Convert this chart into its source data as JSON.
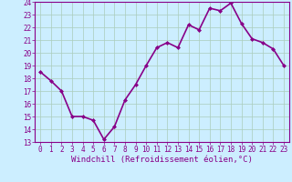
{
  "x": [
    0,
    1,
    2,
    3,
    4,
    5,
    6,
    7,
    8,
    9,
    10,
    11,
    12,
    13,
    14,
    15,
    16,
    17,
    18,
    19,
    20,
    21,
    22,
    23
  ],
  "y": [
    18.5,
    17.8,
    17.0,
    15.0,
    15.0,
    14.7,
    13.2,
    14.2,
    16.3,
    17.5,
    19.0,
    20.4,
    20.8,
    20.4,
    22.2,
    21.8,
    23.5,
    23.3,
    23.9,
    22.3,
    21.1,
    20.8,
    20.3,
    19.0
  ],
  "line_color": "#880088",
  "marker": "D",
  "marker_size": 2.0,
  "bg_color": "#cceeff",
  "grid_color": "#aaccbb",
  "xlabel": "Windchill (Refroidissement éolien,°C)",
  "ylim": [
    13,
    24
  ],
  "xlim": [
    -0.5,
    23.5
  ],
  "yticks": [
    13,
    14,
    15,
    16,
    17,
    18,
    19,
    20,
    21,
    22,
    23,
    24
  ],
  "xticks": [
    0,
    1,
    2,
    3,
    4,
    5,
    6,
    7,
    8,
    9,
    10,
    11,
    12,
    13,
    14,
    15,
    16,
    17,
    18,
    19,
    20,
    21,
    22,
    23
  ],
  "tick_color": "#880088",
  "label_color": "#880088",
  "linewidth": 1.2,
  "tick_fontsize": 5.5,
  "xlabel_fontsize": 6.5
}
